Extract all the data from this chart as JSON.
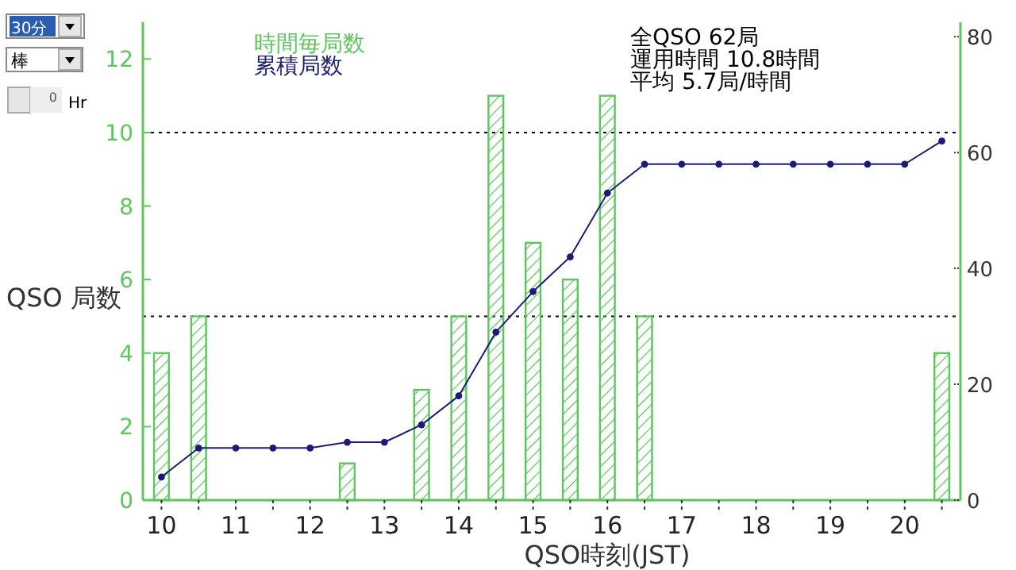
{
  "chart_data": {
    "type": "bar",
    "x": [
      10,
      10.5,
      11,
      11.5,
      12,
      12.5,
      13,
      13.5,
      14,
      14.5,
      15,
      15.5,
      16,
      16.5,
      17,
      17.5,
      18,
      18.5,
      19,
      19.5,
      20,
      20.5
    ],
    "series": [
      {
        "name": "時間毎局数",
        "color": "#5cc85c",
        "values": [
          4,
          5,
          0,
          0,
          0,
          1,
          0,
          3,
          5,
          11,
          7,
          6,
          11,
          5,
          0,
          0,
          0,
          0,
          0,
          0,
          0,
          4
        ]
      },
      {
        "name": "累積局数",
        "type": "line",
        "axis": "y2",
        "color": "#1c1c78",
        "marker": "circle",
        "line_style": "solid",
        "values": [
          4,
          9,
          9,
          9,
          9,
          10,
          10,
          13,
          18,
          29,
          36,
          42,
          53,
          58,
          58,
          58,
          58,
          58,
          58,
          58,
          58,
          62
        ]
      }
    ],
    "xlabel": "QSO時刻(JST)",
    "ylabel": "QSO 局数",
    "xlim": [
      9.75,
      20.75
    ],
    "xticks": [
      10,
      {
        "value": 10.5,
        "label": null
      },
      11,
      {
        "value": 11.5,
        "label": null
      },
      12,
      {
        "value": 12.5,
        "label": null
      },
      13,
      {
        "value": 13.5,
        "label": null
      },
      14,
      {
        "value": 14.5,
        "label": null
      },
      15,
      {
        "value": 15.5,
        "label": null
      },
      16,
      {
        "value": 16.5,
        "label": null
      },
      17,
      {
        "value": 17.5,
        "label": null
      },
      18,
      {
        "value": 18.5,
        "label": null
      },
      19,
      {
        "value": 19.5,
        "label": null
      },
      20,
      {
        "value": 20.5,
        "label": null
      }
    ],
    "ylim": [
      0,
      13
    ],
    "yticks": [
      0,
      2,
      4,
      6,
      8,
      10,
      12
    ],
    "y2lim": [
      0,
      82.5
    ],
    "y2ticks": [
      0,
      20,
      40,
      60,
      80
    ],
    "ref_lines": [
      {
        "axis": "y",
        "value": 5,
        "color": "#000000",
        "line_style": "dotted"
      },
      {
        "axis": "y",
        "value": 10,
        "color": "#000000",
        "line_style": "dotted"
      }
    ],
    "annotations": [
      "全QSO 62局",
      "運用時間 10.8時間",
      "平均 5.7局/時間",
      "30分",
      "棒",
      "0",
      "Hr"
    ],
    "legend": "top",
    "grid": false
  }
}
